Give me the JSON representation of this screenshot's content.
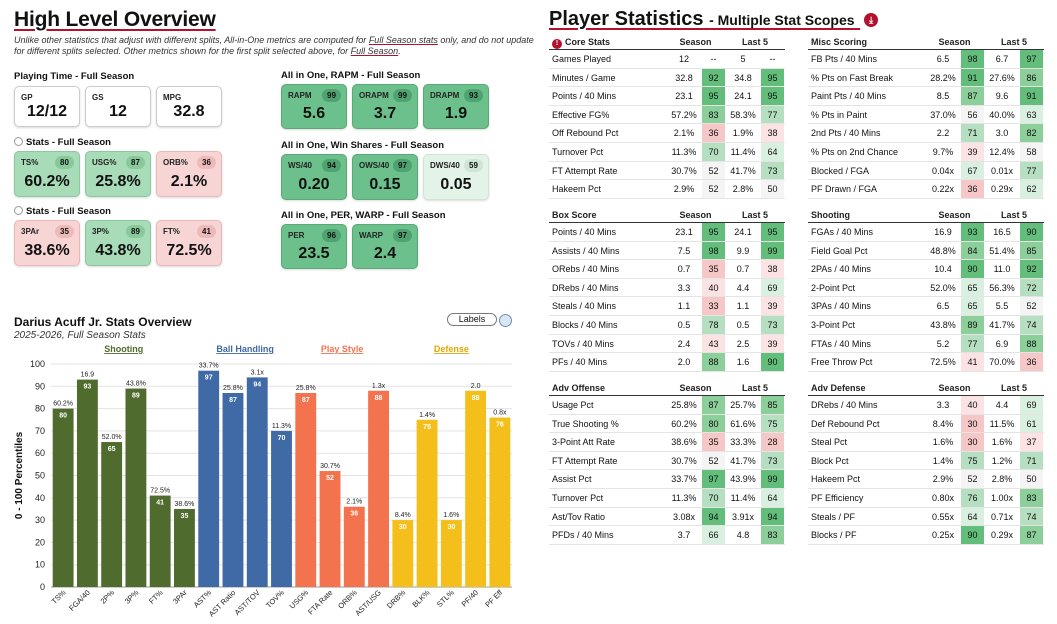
{
  "overview": {
    "title": "High Level Overview",
    "note_a": "Unlike other statistics that adjust with different splits, All-in-One metrics are computed for ",
    "note_b": "Full Season stats",
    "note_c": " only, and do not update for different splits selected. Other metrics shown for the first split selected above, for ",
    "note_d": "Full Season",
    "note_e": "."
  },
  "playing_time": {
    "label": "Playing Time - Full Season",
    "cards": [
      {
        "label": "GP",
        "value": "12/12"
      },
      {
        "label": "GS",
        "value": "12"
      },
      {
        "label": "MPG",
        "value": "32.8"
      }
    ]
  },
  "stats1": {
    "label": "Stats - Full Season",
    "cards": [
      {
        "label": "TS%",
        "value": "60.2%",
        "pct": "80",
        "color": "#a8dbb7"
      },
      {
        "label": "USG%",
        "value": "25.8%",
        "pct": "87",
        "color": "#a8dbb7"
      },
      {
        "label": "ORB%",
        "value": "2.1%",
        "pct": "36",
        "color": "#f8d5d5"
      }
    ]
  },
  "stats2": {
    "label": "Stats - Full Season",
    "cards": [
      {
        "label": "3PAr",
        "value": "38.6%",
        "pct": "35",
        "color": "#f8d5d5"
      },
      {
        "label": "3P%",
        "value": "43.8%",
        "pct": "89",
        "color": "#a8dbb7"
      },
      {
        "label": "FT%",
        "value": "72.5%",
        "pct": "41",
        "color": "#f8d5d5"
      }
    ]
  },
  "rapm": {
    "label": "All in One, RAPM - Full Season",
    "cards": [
      {
        "label": "RAPM",
        "value": "5.6",
        "pct": "99"
      },
      {
        "label": "ORAPM",
        "value": "3.7",
        "pct": "99"
      },
      {
        "label": "DRAPM",
        "value": "1.9",
        "pct": "93"
      }
    ]
  },
  "winshares": {
    "label": "All in One, Win Shares - Full Season",
    "cards": [
      {
        "label": "WS/40",
        "value": "0.20",
        "pct": "94"
      },
      {
        "label": "OWS/40",
        "value": "0.15",
        "pct": "97"
      },
      {
        "label": "DWS/40",
        "value": "0.05",
        "pct": "59"
      }
    ]
  },
  "perwarp": {
    "label": "All in One, PER, WARP - Full Season",
    "cards": [
      {
        "label": "PER",
        "value": "23.5",
        "pct": "96"
      },
      {
        "label": "WARP",
        "value": "2.4",
        "pct": "97"
      }
    ]
  },
  "chart_header": {
    "title": "Darius Acuff Jr. Stats Overview",
    "subtitle": "2025-2026, Full Season Stats",
    "labels_button": "Labels"
  },
  "chart_data": {
    "type": "bar",
    "title": "Darius Acuff Jr. Stats Overview",
    "subtitle": "2025-2026, Full Season Stats",
    "ylabel": "0 - 100 Percentiles",
    "ylim": [
      0,
      100
    ],
    "yticks": [
      0,
      10,
      20,
      30,
      40,
      50,
      60,
      70,
      80,
      90,
      100
    ],
    "grid": true,
    "groups": [
      {
        "name": "Shooting",
        "color": "#4f6b2d",
        "bars": [
          {
            "category": "TS%",
            "value": 80,
            "raw": "60.2%"
          },
          {
            "category": "FGA/40",
            "value": 93,
            "raw": "16.9"
          },
          {
            "category": "2P%",
            "value": 65,
            "raw": "52.0%"
          },
          {
            "category": "3P%",
            "value": 89,
            "raw": "43.8%"
          },
          {
            "category": "FT%",
            "value": 41,
            "raw": "72.5%"
          },
          {
            "category": "3PAr",
            "value": 35,
            "raw": "38.6%"
          }
        ]
      },
      {
        "name": "Ball Handling",
        "color": "#3f6aa6",
        "bars": [
          {
            "category": "AST%",
            "value": 97,
            "raw": "33.7%"
          },
          {
            "category": "AST Ratio",
            "value": 87,
            "raw": "25.8%"
          },
          {
            "category": "AST/TOV",
            "value": 94,
            "raw": "3.1x"
          },
          {
            "category": "TOV%",
            "value": 70,
            "raw": "11.3%"
          }
        ]
      },
      {
        "name": "Play Style",
        "color": "#f4734f",
        "bars": [
          {
            "category": "USG%",
            "value": 87,
            "raw": "25.8%"
          },
          {
            "category": "FTA Rate",
            "value": 52,
            "raw": "30.7%"
          },
          {
            "category": "ORB%",
            "value": 36,
            "raw": "2.1%"
          },
          {
            "category": "AST/USG",
            "value": 88,
            "raw": "1.3x"
          }
        ]
      },
      {
        "name": "Defense",
        "color": "#f5bf1b",
        "bars": [
          {
            "category": "DRB%",
            "value": 30,
            "raw": "8.4%"
          },
          {
            "category": "BLK%",
            "value": 75,
            "raw": "1.4%"
          },
          {
            "category": "STL%",
            "value": 30,
            "raw": "1.6%"
          },
          {
            "category": "PF/40",
            "value": 88,
            "raw": "2.0"
          },
          {
            "category": "PF Eff",
            "value": 76,
            "raw": "0.8x"
          }
        ]
      }
    ]
  },
  "player_stats": {
    "title": "Player Statistics",
    "subtitle": "- Multiple Stat Scopes",
    "tables": [
      {
        "name": "Core Stats",
        "alert": true,
        "h_season": "Season",
        "h_last5": "Last 5",
        "rows": [
          {
            "label": "Games Played",
            "s": "12",
            "sp": "--",
            "l": "5",
            "lp": "--"
          },
          {
            "label": "Minutes / Game",
            "s": "32.8",
            "sp": "92",
            "l": "34.8",
            "lp": "95"
          },
          {
            "label": "Points / 40 Mins",
            "s": "23.1",
            "sp": "95",
            "l": "24.1",
            "lp": "95"
          },
          {
            "label": "Effective FG%",
            "s": "57.2%",
            "sp": "83",
            "l": "58.3%",
            "lp": "77"
          },
          {
            "label": "Off Rebound Pct",
            "s": "2.1%",
            "sp": "36",
            "l": "1.9%",
            "lp": "38"
          },
          {
            "label": "Turnover Pct",
            "s": "11.3%",
            "sp": "70",
            "l": "11.4%",
            "lp": "64"
          },
          {
            "label": "FT Attempt Rate",
            "s": "30.7%",
            "sp": "52",
            "l": "41.7%",
            "lp": "73"
          },
          {
            "label": "Hakeem Pct",
            "s": "2.9%",
            "sp": "52",
            "l": "2.8%",
            "lp": "50"
          }
        ]
      },
      {
        "name": "Misc Scoring",
        "alert": false,
        "h_season": "Season",
        "h_last5": "Last 5",
        "rows": [
          {
            "label": "FB Pts / 40 Mins",
            "s": "6.5",
            "sp": "98",
            "l": "6.7",
            "lp": "97"
          },
          {
            "label": "% Pts on Fast Break",
            "s": "28.2%",
            "sp": "91",
            "l": "27.6%",
            "lp": "86"
          },
          {
            "label": "Paint Pts / 40 Mins",
            "s": "8.5",
            "sp": "87",
            "l": "9.6",
            "lp": "91"
          },
          {
            "label": "% Pts in Paint",
            "s": "37.0%",
            "sp": "56",
            "l": "40.0%",
            "lp": "63"
          },
          {
            "label": "2nd Pts / 40 Mins",
            "s": "2.2",
            "sp": "71",
            "l": "3.0",
            "lp": "82"
          },
          {
            "label": "% Pts on 2nd Chance",
            "s": "9.7%",
            "sp": "39",
            "l": "12.4%",
            "lp": "58"
          },
          {
            "label": "Blocked / FGA",
            "s": "0.04x",
            "sp": "67",
            "l": "0.01x",
            "lp": "77"
          },
          {
            "label": "PF Drawn / FGA",
            "s": "0.22x",
            "sp": "36",
            "l": "0.29x",
            "lp": "62"
          }
        ]
      },
      {
        "name": "Box Score",
        "alert": false,
        "h_season": "Season",
        "h_last5": "Last 5",
        "rows": [
          {
            "label": "Points / 40 Mins",
            "s": "23.1",
            "sp": "95",
            "l": "24.1",
            "lp": "95"
          },
          {
            "label": "Assists / 40 Mins",
            "s": "7.5",
            "sp": "98",
            "l": "9.9",
            "lp": "99"
          },
          {
            "label": "ORebs / 40 Mins",
            "s": "0.7",
            "sp": "35",
            "l": "0.7",
            "lp": "38"
          },
          {
            "label": "DRebs / 40 Mins",
            "s": "3.3",
            "sp": "40",
            "l": "4.4",
            "lp": "69"
          },
          {
            "label": "Steals / 40 Mins",
            "s": "1.1",
            "sp": "33",
            "l": "1.1",
            "lp": "39"
          },
          {
            "label": "Blocks / 40 Mins",
            "s": "0.5",
            "sp": "78",
            "l": "0.5",
            "lp": "73"
          },
          {
            "label": "TOVs / 40 Mins",
            "s": "2.4",
            "sp": "43",
            "l": "2.5",
            "lp": "39"
          },
          {
            "label": "PFs / 40 Mins",
            "s": "2.0",
            "sp": "88",
            "l": "1.6",
            "lp": "90"
          }
        ]
      },
      {
        "name": "Shooting",
        "alert": false,
        "h_season": "Season",
        "h_last5": "Last 5",
        "rows": [
          {
            "label": "FGAs / 40 Mins",
            "s": "16.9",
            "sp": "93",
            "l": "16.5",
            "lp": "90"
          },
          {
            "label": "Field Goal Pct",
            "s": "48.8%",
            "sp": "84",
            "l": "51.4%",
            "lp": "85"
          },
          {
            "label": "2PAs / 40 Mins",
            "s": "10.4",
            "sp": "90",
            "l": "11.0",
            "lp": "92"
          },
          {
            "label": "2-Point Pct",
            "s": "52.0%",
            "sp": "65",
            "l": "56.3%",
            "lp": "72"
          },
          {
            "label": "3PAs / 40 Mins",
            "s": "6.5",
            "sp": "65",
            "l": "5.5",
            "lp": "52"
          },
          {
            "label": "3-Point Pct",
            "s": "43.8%",
            "sp": "89",
            "l": "41.7%",
            "lp": "74"
          },
          {
            "label": "FTAs / 40 Mins",
            "s": "5.2",
            "sp": "77",
            "l": "6.9",
            "lp": "88"
          },
          {
            "label": "Free Throw Pct",
            "s": "72.5%",
            "sp": "41",
            "l": "70.0%",
            "lp": "36"
          }
        ]
      },
      {
        "name": "Adv Offense",
        "alert": false,
        "h_season": "Season",
        "h_last5": "Last 5",
        "rows": [
          {
            "label": "Usage Pct",
            "s": "25.8%",
            "sp": "87",
            "l": "25.7%",
            "lp": "85"
          },
          {
            "label": "True Shooting %",
            "s": "60.2%",
            "sp": "80",
            "l": "61.6%",
            "lp": "75"
          },
          {
            "label": "3-Point Att Rate",
            "s": "38.6%",
            "sp": "35",
            "l": "33.3%",
            "lp": "28"
          },
          {
            "label": "FT Attempt Rate",
            "s": "30.7%",
            "sp": "52",
            "l": "41.7%",
            "lp": "73"
          },
          {
            "label": "Assist Pct",
            "s": "33.7%",
            "sp": "97",
            "l": "43.9%",
            "lp": "99"
          },
          {
            "label": "Turnover Pct",
            "s": "11.3%",
            "sp": "70",
            "l": "11.4%",
            "lp": "64"
          },
          {
            "label": "Ast/Tov Ratio",
            "s": "3.08x",
            "sp": "94",
            "l": "3.91x",
            "lp": "94"
          },
          {
            "label": "PFDs / 40 Mins",
            "s": "3.7",
            "sp": "66",
            "l": "4.8",
            "lp": "83"
          }
        ]
      },
      {
        "name": "Adv Defense",
        "alert": false,
        "h_season": "Season",
        "h_last5": "Last 5",
        "rows": [
          {
            "label": "DRebs / 40 Mins",
            "s": "3.3",
            "sp": "40",
            "l": "4.4",
            "lp": "69"
          },
          {
            "label": "Def Rebound Pct",
            "s": "8.4%",
            "sp": "30",
            "l": "11.5%",
            "lp": "61"
          },
          {
            "label": "Steal Pct",
            "s": "1.6%",
            "sp": "30",
            "l": "1.6%",
            "lp": "37"
          },
          {
            "label": "Block Pct",
            "s": "1.4%",
            "sp": "75",
            "l": "1.2%",
            "lp": "71"
          },
          {
            "label": "Hakeem Pct",
            "s": "2.9%",
            "sp": "52",
            "l": "2.8%",
            "lp": "50"
          },
          {
            "label": "PF Efficiency",
            "s": "0.80x",
            "sp": "76",
            "l": "1.00x",
            "lp": "83"
          },
          {
            "label": "Steals / PF",
            "s": "0.55x",
            "sp": "64",
            "l": "0.71x",
            "lp": "74"
          },
          {
            "label": "Blocks / PF",
            "s": "0.25x",
            "sp": "90",
            "l": "0.29x",
            "lp": "87"
          }
        ]
      }
    ]
  }
}
